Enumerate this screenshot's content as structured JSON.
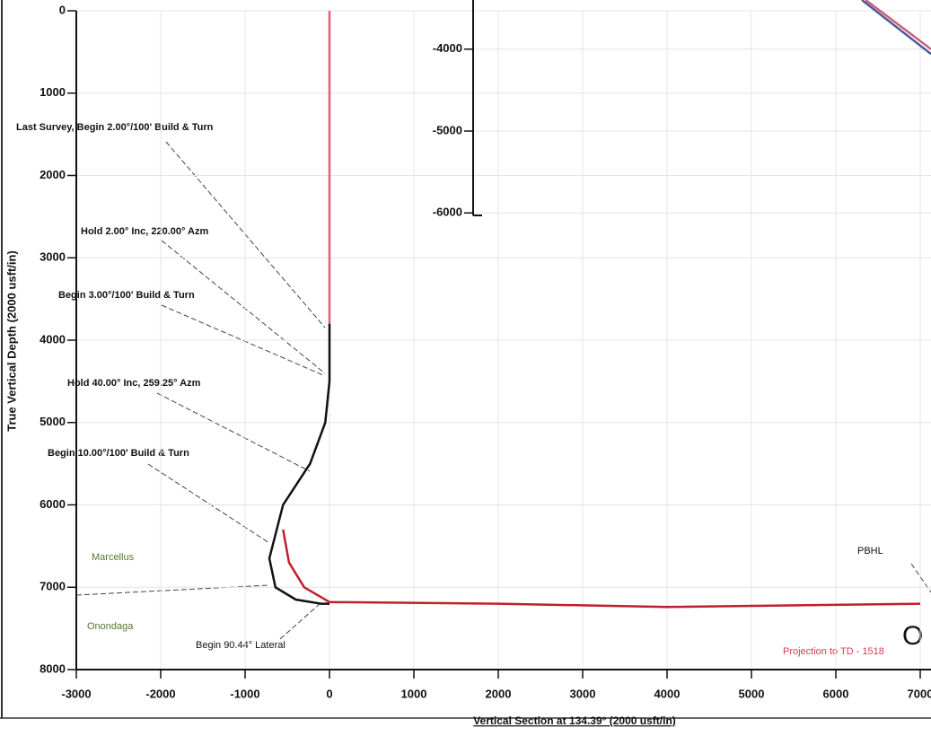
{
  "chart_data": [
    {
      "type": "line",
      "ylabel": "True Vertical Depth (2000 usft/in)",
      "xlabel": "Vertical Section at 134.39° (2000 usft/in)",
      "xlim": [
        -3000,
        7000
      ],
      "xticks": [
        -3000,
        -2000,
        -1000,
        0,
        1000,
        2000,
        3000,
        4000,
        5000,
        6000,
        7000
      ],
      "ylim": [
        0,
        8000
      ],
      "yticks": [
        0,
        1000,
        2000,
        3000,
        4000,
        5000,
        6000,
        7000,
        8000
      ],
      "y_inverted": true,
      "grid": true,
      "series": [
        {
          "color": "#e0607a",
          "x": [
            0,
            0
          ],
          "values": [
            0,
            3800
          ]
        },
        {
          "color": "#111111",
          "x": [
            0,
            0,
            -50,
            -230,
            -550,
            -713,
            -640,
            -400,
            -100,
            0
          ],
          "values": [
            3800,
            4500,
            5000,
            5500,
            6000,
            6650,
            7000,
            7150,
            7200,
            7200
          ]
        },
        {
          "color": "#c0202a",
          "x": [
            -550,
            -480,
            -300,
            0,
            2000,
            4000,
            7000
          ],
          "values": [
            6300,
            6700,
            7000,
            7180,
            7200,
            7240,
            7200
          ]
        }
      ],
      "annotations": [
        "Last Survey, Begin 2.00°/100' Build & Turn",
        "Hold 2.00° Inc, 220.00° Azm",
        "Begin 3.00°/100' Build & Turn",
        "Hold 40.00° Inc, 259.25° Azm",
        "Begin 10.00°/100' Build & Turn",
        "Begin 90.44° Lateral",
        "Marcellus",
        "Onondaga",
        "PBHL",
        "Projection to TD - 1518",
        "O"
      ]
    },
    {
      "type": "line",
      "xlim": [
        -1700,
        3810
      ],
      "ylim": [
        -6030,
        -3400
      ],
      "yticks": [
        -4000,
        -5000,
        -6000
      ],
      "y_inverted": false,
      "grid": true,
      "series": [
        {
          "color": "#4a5a9a",
          "x": [
            2906,
            3725
          ],
          "values": [
            -3400,
            -4060
          ]
        },
        {
          "color": "#c8607a",
          "x": [
            2950,
            3725
          ],
          "values": [
            -3400,
            -4000
          ]
        }
      ]
    }
  ]
}
